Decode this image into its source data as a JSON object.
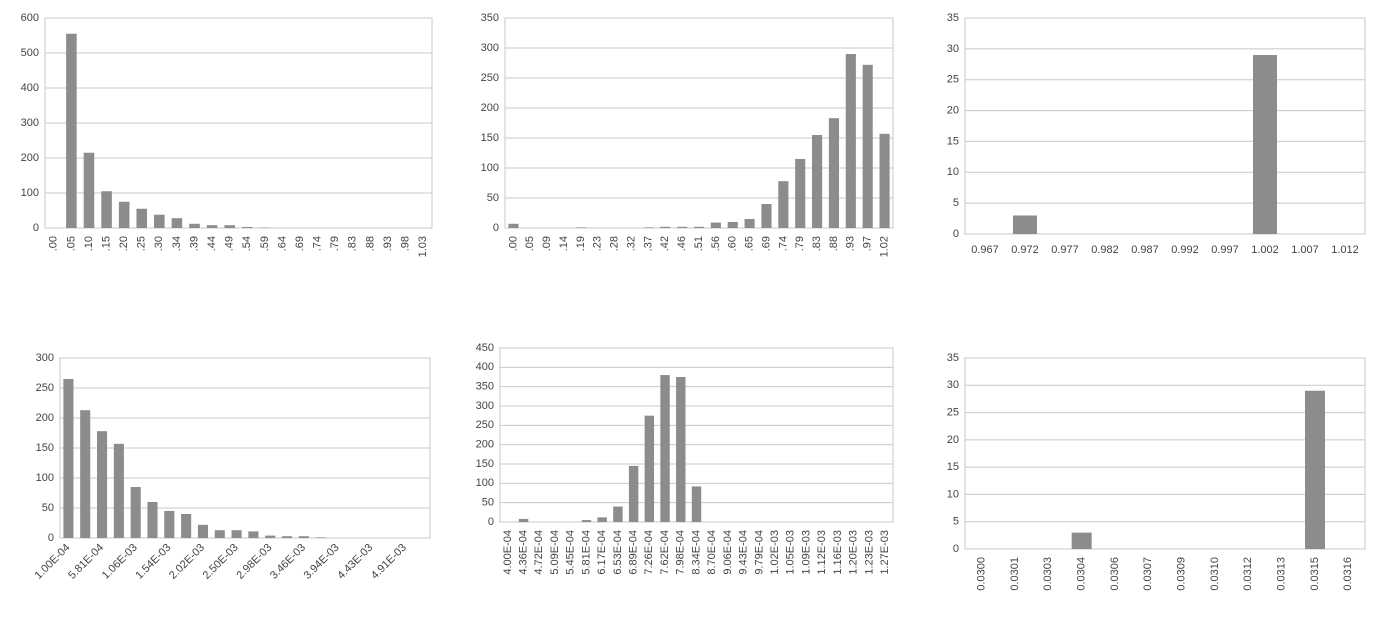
{
  "chart_data": [
    {
      "type": "bar",
      "color": "#8c8c8c",
      "grid": true,
      "categories": [
        ".00",
        ".05",
        ".10",
        ".15",
        ".20",
        ".25",
        ".30",
        ".34",
        ".39",
        ".44",
        ".49",
        ".54",
        ".59",
        ".64",
        ".69",
        ".74",
        ".79",
        ".83",
        ".88",
        ".93",
        ".98",
        "1.03"
      ],
      "values": [
        0,
        555,
        215,
        105,
        75,
        55,
        38,
        28,
        12,
        8,
        8,
        3,
        1,
        0,
        0,
        0,
        0,
        0,
        0,
        0,
        0,
        0
      ],
      "ylim": [
        0,
        600
      ],
      "yticks": [
        0,
        100,
        200,
        300,
        400,
        500,
        600
      ]
    },
    {
      "type": "bar",
      "color": "#8c8c8c",
      "grid": true,
      "categories": [
        ".00",
        ".05",
        ".09",
        ".14",
        ".19",
        ".23",
        ".28",
        ".32",
        ".37",
        ".42",
        ".46",
        ".51",
        ".56",
        ".60",
        ".65",
        ".69",
        ".74",
        ".79",
        ".83",
        ".88",
        ".93",
        ".97",
        "1.02"
      ],
      "values": [
        7,
        0,
        0,
        0,
        1,
        0,
        0,
        0,
        1,
        2,
        2,
        2,
        9,
        10,
        15,
        40,
        78,
        115,
        155,
        183,
        290,
        272,
        157
      ],
      "ylim": [
        0,
        350
      ],
      "yticks": [
        0,
        50,
        100,
        150,
        200,
        250,
        300,
        350
      ]
    },
    {
      "type": "bar",
      "color": "#8c8c8c",
      "grid": true,
      "categories": [
        "0.967",
        "0.972",
        "0.977",
        "0.982",
        "0.987",
        "0.992",
        "0.997",
        "1.002",
        "1.007",
        "1.012"
      ],
      "values": [
        0,
        3,
        0,
        0,
        0,
        0,
        0,
        29,
        0,
        0
      ],
      "ylim": [
        0,
        35
      ],
      "yticks": [
        0,
        5,
        10,
        15,
        20,
        25,
        30,
        35
      ]
    },
    {
      "type": "bar",
      "color": "#8c8c8c",
      "grid": true,
      "categories": [
        "1.00E-04",
        null,
        "5.81E-04",
        null,
        "1.06E-03",
        null,
        "1.54E-03",
        null,
        "2.02E-03",
        null,
        "2.50E-03",
        null,
        "2.98E-03",
        null,
        "3.46E-03",
        null,
        "3.94E-03",
        null,
        "4.43E-03",
        null,
        "4.91E-03",
        null
      ],
      "values": [
        265,
        213,
        178,
        157,
        85,
        60,
        45,
        40,
        22,
        13,
        13,
        11,
        4,
        3,
        3,
        1,
        0,
        0,
        0,
        0,
        0,
        0
      ],
      "ylim": [
        0,
        300
      ],
      "yticks": [
        0,
        50,
        100,
        150,
        200,
        250,
        300
      ]
    },
    {
      "type": "bar",
      "color": "#8c8c8c",
      "grid": true,
      "categories": [
        "4.00E-04",
        "4.36E-04",
        "4.72E-04",
        "5.09E-04",
        "5.45E-04",
        "5.81E-04",
        "6.17E-04",
        "6.53E-04",
        "6.89E-04",
        "7.26E-04",
        "7.62E-04",
        "7.98E-04",
        "8.34E-04",
        "8.70E-04",
        "9.06E-04",
        "9.43E-04",
        "9.79E-04",
        "1.02E-03",
        "1.05E-03",
        "1.09E-03",
        "1.12E-03",
        "1.16E-03",
        "1.20E-03",
        "1.23E-03",
        "1.27E-03"
      ],
      "values": [
        0,
        8,
        0,
        0,
        0,
        5,
        12,
        40,
        145,
        275,
        380,
        375,
        92,
        0,
        0,
        0,
        0,
        0,
        0,
        0,
        0,
        0,
        0,
        0,
        0
      ],
      "ylim": [
        0,
        450
      ],
      "yticks": [
        0,
        50,
        100,
        150,
        200,
        250,
        300,
        350,
        400,
        450
      ]
    },
    {
      "type": "bar",
      "color": "#8c8c8c",
      "grid": true,
      "categories": [
        "0.0300",
        "0.0301",
        "0.0303",
        "0.0304",
        "0.0306",
        "0.0307",
        "0.0309",
        "0.0310",
        "0.0312",
        "0.0313",
        "0.0315",
        "0.0316"
      ],
      "values": [
        0,
        0,
        0,
        3,
        0,
        0,
        0,
        0,
        0,
        0,
        29,
        0
      ],
      "ylim": [
        0,
        35
      ],
      "yticks": [
        0,
        5,
        10,
        15,
        20,
        25,
        30,
        35
      ]
    }
  ]
}
